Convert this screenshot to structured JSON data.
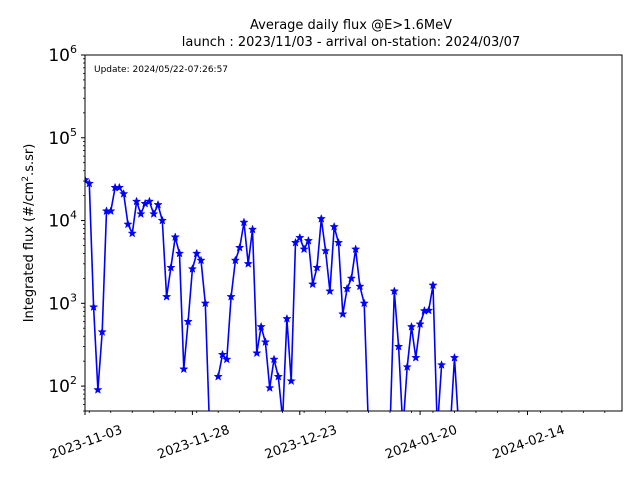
{
  "chart_data": {
    "type": "line",
    "title": "Average daily flux @E>1.6MeV",
    "subtitle": "launch : 2023/11/03 - arrival on-station: 2024/03/07",
    "xlabel": "",
    "ylabel": "Integrated flux (#/cm2.s.sr)",
    "ylabel_parts": {
      "pre": "Integrated flux (#/cm",
      "sup": "2",
      "post": ".s.sr)"
    },
    "annotation": "Update: 2024/05/22-07:26:57",
    "y_scale": "log",
    "ylim": [
      50,
      1000000
    ],
    "xlim": [
      "2023-11-03",
      "2024-03-07"
    ],
    "grid": false,
    "legend": "none",
    "line_color": "#0000ff",
    "marker": "star",
    "x_ticks": [
      "2023-11-03",
      "2023-11-28",
      "2023-12-23",
      "2024-01-20",
      "2024-02-14"
    ],
    "y_ticks": [
      {
        "value": 100,
        "base": "10",
        "exp": "2"
      },
      {
        "value": 1000,
        "base": "10",
        "exp": "3"
      },
      {
        "value": 10000,
        "base": "10",
        "exp": "4"
      },
      {
        "value": 100000,
        "base": "10",
        "exp": "5"
      },
      {
        "value": 1000000,
        "base": "10",
        "exp": "6"
      }
    ],
    "series": [
      {
        "points": [
          [
            "2023-11-03",
            31000
          ],
          [
            "2023-11-04",
            28000
          ],
          [
            "2023-11-05",
            900
          ],
          [
            "2023-11-06",
            90
          ],
          [
            "2023-11-07",
            450
          ],
          [
            "2023-11-08",
            13000
          ],
          [
            "2023-11-09",
            13000
          ],
          [
            "2023-11-10",
            25000
          ],
          [
            "2023-11-11",
            25000
          ],
          [
            "2023-11-12",
            21000
          ],
          [
            "2023-11-13",
            9000
          ],
          [
            "2023-11-14",
            7000
          ],
          [
            "2023-11-15",
            17000
          ],
          [
            "2023-11-16",
            12000
          ],
          [
            "2023-11-17",
            16000
          ],
          [
            "2023-11-18",
            17000
          ],
          [
            "2023-11-19",
            12000
          ],
          [
            "2023-11-20",
            15500
          ],
          [
            "2023-11-21",
            10000
          ],
          [
            "2023-11-22",
            1200
          ],
          [
            "2023-11-23",
            2700
          ],
          [
            "2023-11-24",
            6300
          ],
          [
            "2023-11-25",
            4000
          ],
          [
            "2023-11-26",
            160
          ],
          [
            "2023-11-27",
            600
          ],
          [
            "2023-11-28",
            2600
          ],
          [
            "2023-11-29",
            4000
          ],
          [
            "2023-11-30",
            3300
          ],
          [
            "2023-12-01",
            1000
          ],
          [
            "2023-12-02",
            30
          ],
          [
            "2023-12-03",
            null
          ],
          [
            "2023-12-04",
            130
          ],
          [
            "2023-12-05",
            240
          ],
          [
            "2023-12-06",
            210
          ],
          [
            "2023-12-07",
            1200
          ],
          [
            "2023-12-08",
            3300
          ],
          [
            "2023-12-09",
            4700
          ],
          [
            "2023-12-10",
            9500
          ],
          [
            "2023-12-11",
            3000
          ],
          [
            "2023-12-12",
            7800
          ],
          [
            "2023-12-13",
            250
          ],
          [
            "2023-12-14",
            520
          ],
          [
            "2023-12-15",
            340
          ],
          [
            "2023-12-16",
            95
          ],
          [
            "2023-12-17",
            210
          ],
          [
            "2023-12-18",
            130
          ],
          [
            "2023-12-19",
            40
          ],
          [
            "2023-12-20",
            650
          ],
          [
            "2023-12-21",
            115
          ],
          [
            "2023-12-22",
            5400
          ],
          [
            "2023-12-23",
            6200
          ],
          [
            "2023-12-24",
            4500
          ],
          [
            "2023-12-25",
            5700
          ],
          [
            "2023-12-26",
            1700
          ],
          [
            "2023-12-27",
            2700
          ],
          [
            "2023-12-28",
            10500
          ],
          [
            "2023-12-29",
            4300
          ],
          [
            "2023-12-30",
            1400
          ],
          [
            "2023-12-31",
            8400
          ],
          [
            "2024-01-01",
            5400
          ],
          [
            "2024-01-02",
            740
          ],
          [
            "2024-01-03",
            1500
          ],
          [
            "2024-01-04",
            2000
          ],
          [
            "2024-01-05",
            4500
          ],
          [
            "2024-01-06",
            1600
          ],
          [
            "2024-01-07",
            1000
          ],
          [
            "2024-01-08",
            30
          ],
          [
            "2024-01-13",
            30
          ],
          [
            "2024-01-14",
            1400
          ],
          [
            "2024-01-15",
            300
          ],
          [
            "2024-01-16",
            30
          ],
          [
            "2024-01-17",
            170
          ],
          [
            "2024-01-18",
            520
          ],
          [
            "2024-01-19",
            220
          ],
          [
            "2024-01-20",
            560
          ],
          [
            "2024-01-21",
            810
          ],
          [
            "2024-01-22",
            820
          ],
          [
            "2024-01-23",
            1650
          ],
          [
            "2024-01-24",
            30
          ],
          [
            "2024-01-25",
            180
          ],
          [
            "2024-01-26",
            null
          ],
          [
            "2024-01-27",
            30
          ],
          [
            "2024-01-28",
            220
          ],
          [
            "2024-01-29",
            30
          ]
        ]
      }
    ]
  }
}
